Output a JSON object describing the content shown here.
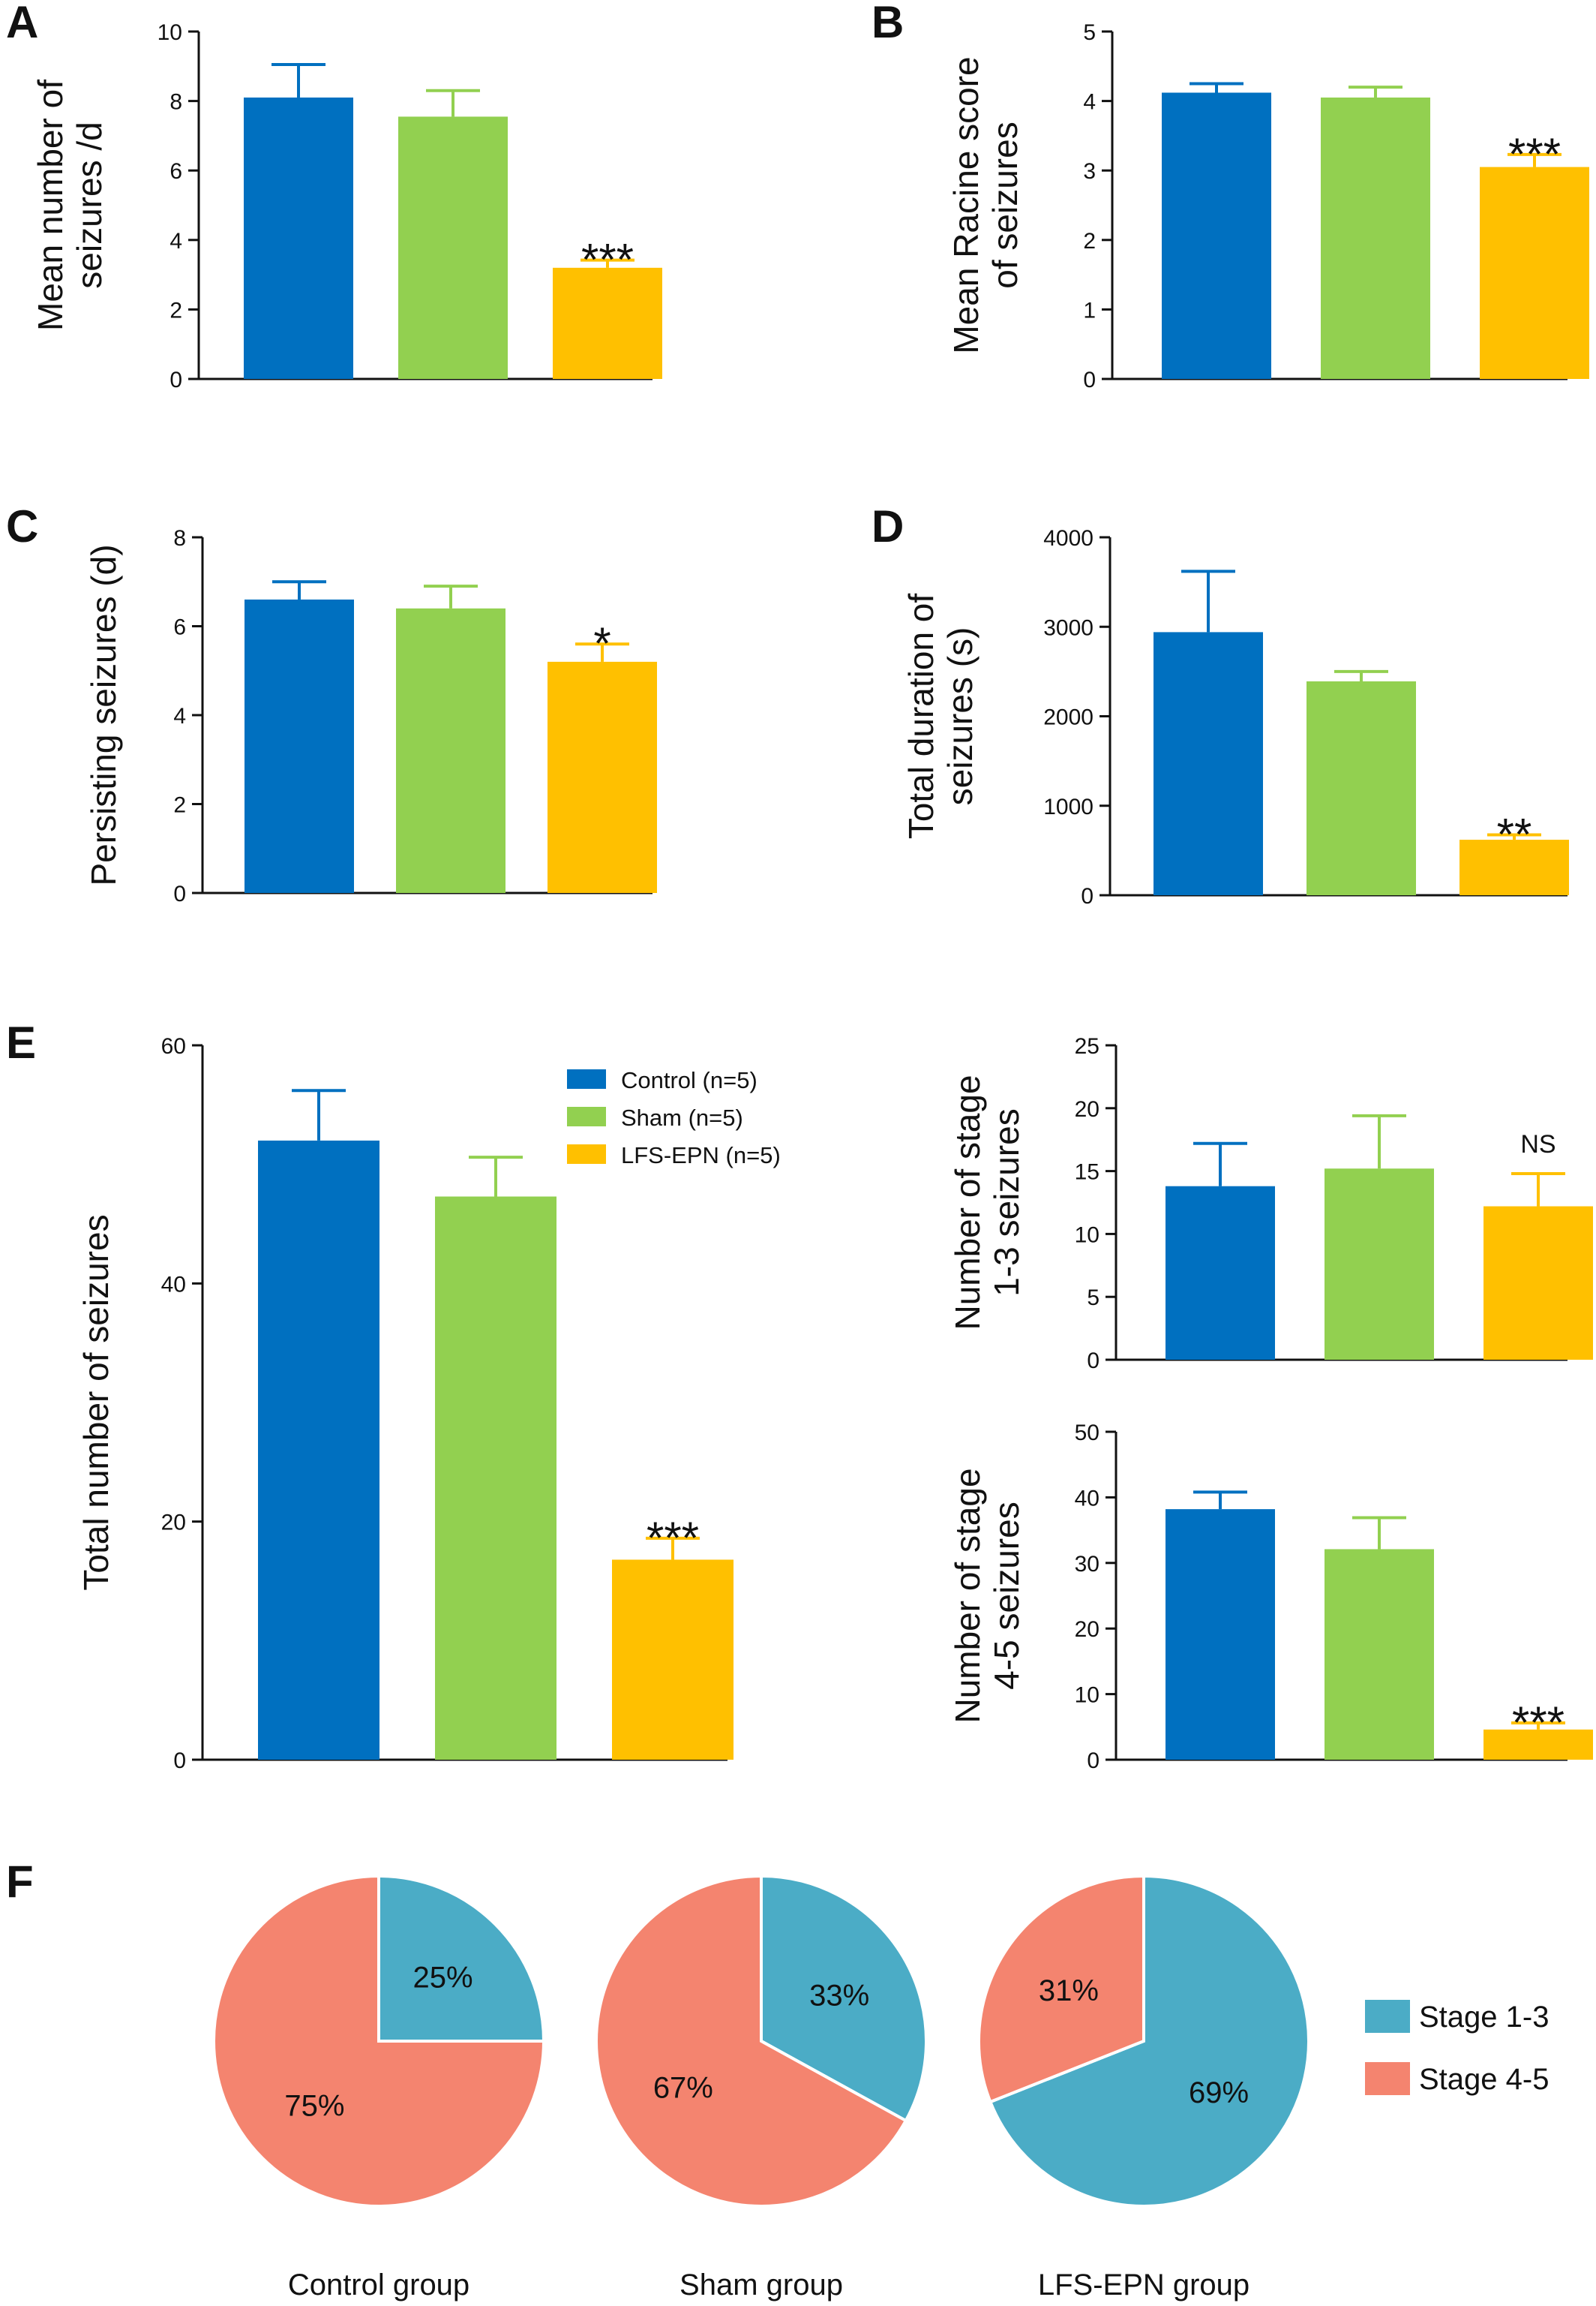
{
  "legend_bar": [
    {
      "label": "Control (n=5)",
      "color": "#0070C0"
    },
    {
      "label": "Sham (n=5)",
      "color": "#92D050"
    },
    {
      "label": "LFS-EPN (n=5)",
      "color": "#FFC000"
    }
  ],
  "colors": {
    "stage_1_3": "#4BACC6",
    "stage_4_5": "#F4846F"
  },
  "chart_data": [
    {
      "panel": "A",
      "type": "bar",
      "categories": [
        "Control (n=5)",
        "Sham (n=5)",
        "LFS-EPN (n=5)"
      ],
      "values": [
        8.1,
        7.55,
        3.2
      ],
      "errors": [
        0.95,
        0.75,
        0.22
      ],
      "ylabel": [
        "Mean number of",
        "seizures /d"
      ],
      "ylim": [
        0,
        10
      ],
      "yticks": [
        "0",
        "2",
        "4",
        "6",
        "8",
        "10"
      ],
      "significance": [
        "",
        "",
        "***"
      ]
    },
    {
      "panel": "B",
      "type": "bar",
      "categories": [
        "Control (n=5)",
        "Sham (n=5)",
        "LFS-EPN (n=5)"
      ],
      "values": [
        4.12,
        4.05,
        3.05
      ],
      "errors": [
        0.13,
        0.15,
        0.18
      ],
      "ylabel": [
        "Mean Racine score",
        "of seizures"
      ],
      "ylim": [
        0,
        5
      ],
      "yticks": [
        "0",
        "1",
        "2",
        "3",
        "4",
        "5"
      ],
      "significance": [
        "",
        "",
        "***"
      ]
    },
    {
      "panel": "C",
      "type": "bar",
      "categories": [
        "Control (n=5)",
        "Sham (n=5)",
        "LFS-EPN (n=5)"
      ],
      "values": [
        6.6,
        6.4,
        5.2
      ],
      "errors": [
        0.4,
        0.5,
        0.4
      ],
      "ylabel": [
        "Persisting seizures (d)"
      ],
      "ylim": [
        0,
        8
      ],
      "yticks": [
        "0",
        "2",
        "4",
        "6",
        "8"
      ],
      "significance": [
        "",
        "",
        "*"
      ]
    },
    {
      "panel": "D",
      "type": "bar",
      "categories": [
        "Control (n=5)",
        "Sham (n=5)",
        "LFS-EPN (n=5)"
      ],
      "values": [
        2940,
        2390,
        620
      ],
      "errors": [
        680,
        110,
        55
      ],
      "ylabel": [
        "Total duration of",
        "seizures (s)"
      ],
      "ylim": [
        0,
        4000
      ],
      "yticks": [
        "0",
        "1000",
        "2000",
        "3000",
        "4000"
      ],
      "significance": [
        "",
        "",
        "**"
      ]
    },
    {
      "panel": "E",
      "type": "bar",
      "categories": [
        "Control (n=5)",
        "Sham (n=5)",
        "LFS-EPN (n=5)"
      ],
      "values": [
        52,
        47.3,
        16.8
      ],
      "errors": [
        4.2,
        3.3,
        1.8
      ],
      "ylabel": [
        "Total number of seizures"
      ],
      "ylim": [
        0,
        60
      ],
      "yticks": [
        "0",
        "20",
        "40",
        "60"
      ],
      "significance": [
        "",
        "",
        "***"
      ]
    },
    {
      "panel": "E2",
      "type": "bar",
      "categories": [
        "Control (n=5)",
        "Sham (n=5)",
        "LFS-EPN (n=5)"
      ],
      "values": [
        13.8,
        15.2,
        12.2
      ],
      "errors": [
        3.4,
        4.2,
        2.6
      ],
      "ylabel": [
        "Number of stage",
        "1-3 seizures"
      ],
      "ylim": [
        0,
        25
      ],
      "yticks": [
        "0",
        "5",
        "10",
        "15",
        "20",
        "25"
      ],
      "significance": [
        "",
        "",
        "NS"
      ]
    },
    {
      "panel": "E3",
      "type": "bar",
      "categories": [
        "Control (n=5)",
        "Sham (n=5)",
        "LFS-EPN (n=5)"
      ],
      "values": [
        38.2,
        32.1,
        4.6
      ],
      "errors": [
        2.6,
        4.8,
        1.0
      ],
      "ylabel": [
        "Number of stage",
        "4-5 seizures"
      ],
      "ylim": [
        0,
        50
      ],
      "yticks": [
        "0",
        "10",
        "20",
        "30",
        "40",
        "50"
      ],
      "significance": [
        "",
        "",
        "***"
      ]
    },
    {
      "panel": "F",
      "type": "pie",
      "legend": [
        "Stage 1-3",
        "Stage 4-5"
      ],
      "pies": [
        {
          "caption": "Control group",
          "slices": [
            {
              "name": "Stage 1-3",
              "value": 25,
              "label": "25%"
            },
            {
              "name": "Stage 4-5",
              "value": 75,
              "label": "75%"
            }
          ]
        },
        {
          "caption": "Sham group",
          "slices": [
            {
              "name": "Stage 1-3",
              "value": 33,
              "label": "33%"
            },
            {
              "name": "Stage 4-5",
              "value": 67,
              "label": "67%"
            }
          ]
        },
        {
          "caption": "LFS-EPN group",
          "slices": [
            {
              "name": "Stage 1-3",
              "value": 69,
              "label": "69%"
            },
            {
              "name": "Stage 4-5",
              "value": 31,
              "label": "31%"
            }
          ]
        }
      ]
    }
  ]
}
